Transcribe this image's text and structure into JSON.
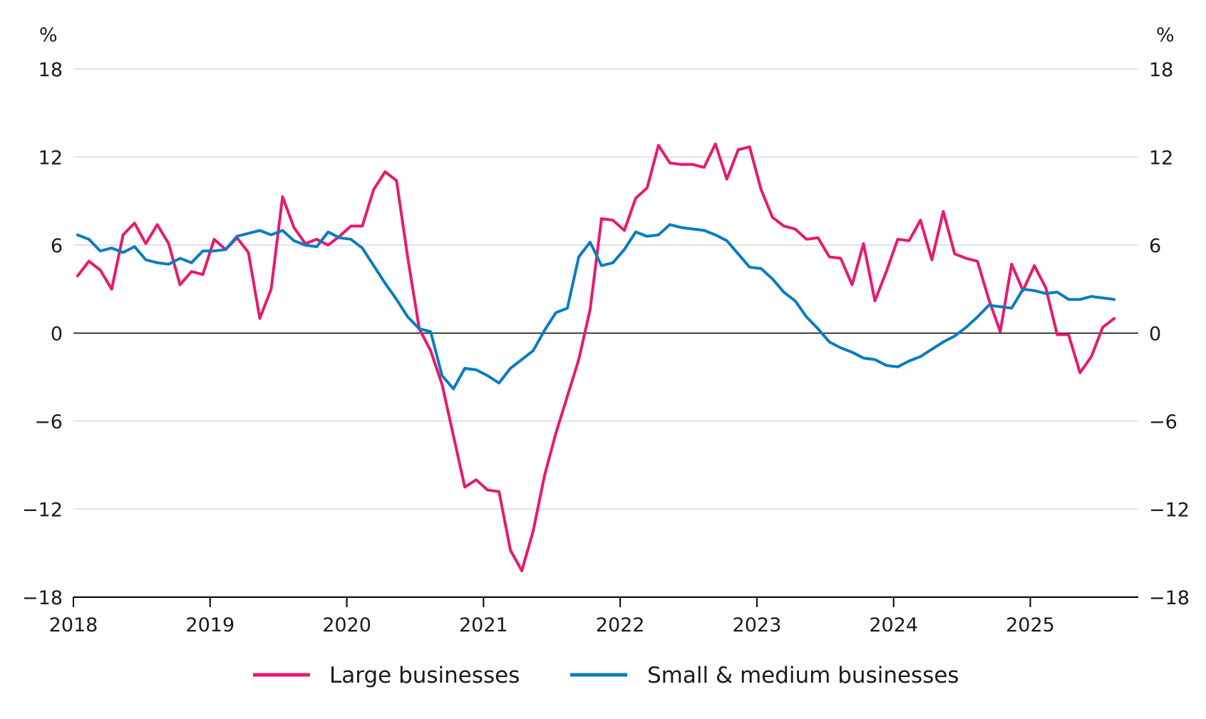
{
  "chart_data": {
    "type": "line",
    "unit_left": "%",
    "unit_right": "%",
    "ylim": [
      -18,
      18
    ],
    "y_ticks": [
      18,
      12,
      6,
      0,
      -6,
      -12,
      -18
    ],
    "y_tick_labels": [
      "18",
      "12",
      "6",
      "0",
      "−6",
      "−12",
      "−18"
    ],
    "x_range": [
      2018,
      2025.79
    ],
    "x_ticks": [
      2018,
      2019,
      2020,
      2021,
      2022,
      2023,
      2024,
      2025
    ],
    "x_tick_labels": [
      "2018",
      "2019",
      "2020",
      "2021",
      "2022",
      "2023",
      "2024",
      "2025"
    ],
    "grid": true,
    "legend_position": "bottom",
    "series": [
      {
        "name": "Large businesses",
        "color": "#e8196e",
        "x_start": 2018.03,
        "step_months": 1,
        "values": [
          3.9,
          4.9,
          4.3,
          3,
          6.7,
          7.5,
          6.1,
          7.4,
          6.1,
          3.3,
          4.2,
          4,
          6.4,
          5.7,
          6.5,
          5.5,
          1,
          3,
          9.3,
          7.2,
          6.1,
          6.4,
          6,
          6.6,
          7.3,
          7.3,
          9.8,
          11,
          10.4,
          5.1,
          0.3,
          -1.2,
          -3.5,
          -7,
          -10.5,
          -10,
          -10.7,
          -10.8,
          -14.8,
          -16.2,
          -13.5,
          -9.7,
          -6.8,
          -4.3,
          -1.8,
          1.6,
          7.8,
          7.7,
          7,
          9.2,
          9.9,
          12.8,
          11.6,
          11.5,
          11.5,
          11.3,
          12.9,
          10.5,
          12.5,
          12.7,
          9.8,
          7.9,
          7.3,
          7.1,
          6.4,
          6.5,
          5.2,
          5.1,
          3.3,
          6.1,
          2.2,
          4.2,
          6.4,
          6.3,
          7.7,
          5,
          8.3,
          5.4,
          5.1,
          4.9,
          2.3,
          0.1,
          4.7,
          2.9,
          4.6,
          3.1,
          -0.1,
          -0.1,
          -2.7,
          -1.6,
          0.4,
          1
        ]
      },
      {
        "name": "Small & medium businesses",
        "color": "#0a7cc1",
        "x_start": 2018.03,
        "step_months": 1,
        "values": [
          6.7,
          6.4,
          5.6,
          5.8,
          5.5,
          5.9,
          5,
          4.8,
          4.7,
          5.1,
          4.8,
          5.6,
          5.6,
          5.7,
          6.6,
          6.8,
          7,
          6.7,
          7,
          6.3,
          6,
          5.9,
          6.9,
          6.5,
          6.4,
          5.8,
          4.6,
          3.4,
          2.3,
          1.1,
          0.3,
          0.1,
          -2.9,
          -3.8,
          -2.4,
          -2.5,
          -2.9,
          -3.4,
          -2.4,
          -1.8,
          -1.2,
          0.2,
          1.4,
          1.7,
          5.2,
          6.2,
          4.6,
          4.8,
          5.7,
          6.9,
          6.6,
          6.7,
          7.4,
          7.2,
          7.1,
          7,
          6.7,
          6.3,
          5.4,
          4.5,
          4.4,
          3.7,
          2.8,
          2.2,
          1.1,
          0.3,
          -0.6,
          -1,
          -1.3,
          -1.7,
          -1.8,
          -2.2,
          -2.3,
          -1.9,
          -1.6,
          -1.1,
          -0.6,
          -0.2,
          0.4,
          1.1,
          1.9,
          1.8,
          1.7,
          3,
          2.9,
          2.7,
          2.8,
          2.3,
          2.3,
          2.5,
          2.4,
          2.3
        ]
      }
    ]
  }
}
